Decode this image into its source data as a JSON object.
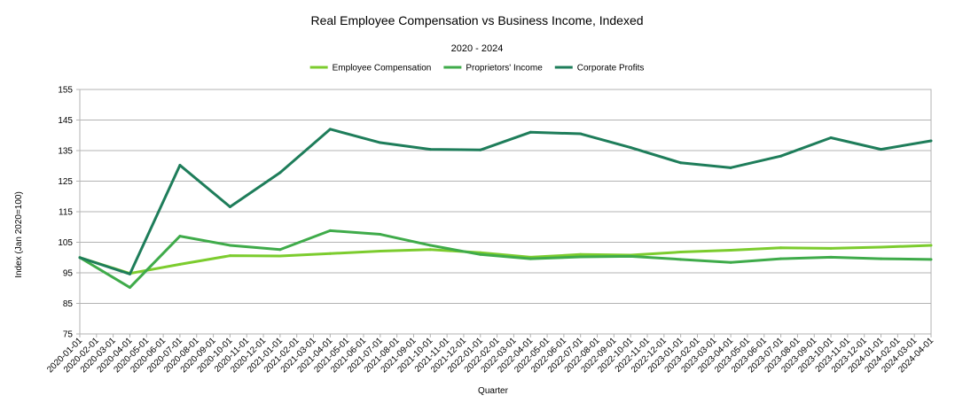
{
  "chart_data": {
    "type": "line",
    "title": "Real Employee Compensation vs Business Income, Indexed",
    "subtitle": "2020 - 2024",
    "xlabel": "Quarter",
    "ylabel": "Index (Jan 2020=100)",
    "ylim": [
      75,
      155
    ],
    "yticks": [
      75,
      85,
      95,
      105,
      115,
      125,
      135,
      145,
      155
    ],
    "grid": true,
    "legend_position": "top-center",
    "categories": [
      "2020-01-01",
      "2020-02-01",
      "2020-03-01",
      "2020-04-01",
      "2020-05-01",
      "2020-06-01",
      "2020-07-01",
      "2020-08-01",
      "2020-09-01",
      "2020-10-01",
      "2020-11-01",
      "2020-12-01",
      "2021-01-01",
      "2021-02-01",
      "2021-03-01",
      "2021-04-01",
      "2021-05-01",
      "2021-06-01",
      "2021-07-01",
      "2021-08-01",
      "2021-09-01",
      "2021-10-01",
      "2021-11-01",
      "2021-12-01",
      "2022-01-01",
      "2022-02-01",
      "2022-03-01",
      "2022-04-01",
      "2022-05-01",
      "2022-06-01",
      "2022-07-01",
      "2022-08-01",
      "2022-09-01",
      "2022-10-01",
      "2022-11-01",
      "2022-12-01",
      "2023-01-01",
      "2023-02-01",
      "2023-03-01",
      "2023-04-01",
      "2023-05-01",
      "2023-06-01",
      "2023-07-01",
      "2023-08-01",
      "2023-09-01",
      "2023-10-01",
      "2023-11-01",
      "2023-12-01",
      "2024-01-01",
      "2024-02-01",
      "2024-03-01",
      "2024-04-01"
    ],
    "series": [
      {
        "name": "Employee Compensation",
        "color": "#7ccc2e",
        "points": [
          {
            "x": "2020-01-01",
            "y": 100
          },
          {
            "x": "2020-04-01",
            "y": 94.8
          },
          {
            "x": "2020-07-01",
            "y": 97.8
          },
          {
            "x": "2020-10-01",
            "y": 100.6
          },
          {
            "x": "2021-01-01",
            "y": 100.5
          },
          {
            "x": "2021-04-01",
            "y": 101.3
          },
          {
            "x": "2021-07-01",
            "y": 102.1
          },
          {
            "x": "2021-10-01",
            "y": 102.6
          },
          {
            "x": "2022-01-01",
            "y": 101.6
          },
          {
            "x": "2022-04-01",
            "y": 100.1
          },
          {
            "x": "2022-07-01",
            "y": 101.0
          },
          {
            "x": "2022-10-01",
            "y": 100.8
          },
          {
            "x": "2023-01-01",
            "y": 101.8
          },
          {
            "x": "2023-04-01",
            "y": 102.4
          },
          {
            "x": "2023-07-01",
            "y": 103.2
          },
          {
            "x": "2023-10-01",
            "y": 103.0
          },
          {
            "x": "2024-01-01",
            "y": 103.4
          },
          {
            "x": "2024-04-01",
            "y": 104.0
          }
        ]
      },
      {
        "name": "Proprietors' Income",
        "color": "#3fab4a",
        "points": [
          {
            "x": "2020-01-01",
            "y": 100
          },
          {
            "x": "2020-04-01",
            "y": 90.2
          },
          {
            "x": "2020-07-01",
            "y": 107.0
          },
          {
            "x": "2020-10-01",
            "y": 104.0
          },
          {
            "x": "2021-01-01",
            "y": 102.6
          },
          {
            "x": "2021-04-01",
            "y": 108.8
          },
          {
            "x": "2021-07-01",
            "y": 107.6
          },
          {
            "x": "2021-10-01",
            "y": 104.0
          },
          {
            "x": "2022-01-01",
            "y": 101.0
          },
          {
            "x": "2022-04-01",
            "y": 99.6
          },
          {
            "x": "2022-07-01",
            "y": 100.2
          },
          {
            "x": "2022-10-01",
            "y": 100.4
          },
          {
            "x": "2023-01-01",
            "y": 99.4
          },
          {
            "x": "2023-04-01",
            "y": 98.4
          },
          {
            "x": "2023-07-01",
            "y": 99.6
          },
          {
            "x": "2023-10-01",
            "y": 100.1
          },
          {
            "x": "2024-01-01",
            "y": 99.6
          },
          {
            "x": "2024-04-01",
            "y": 99.4
          }
        ]
      },
      {
        "name": "Corporate Profits",
        "color": "#1e7d5a",
        "points": [
          {
            "x": "2020-01-01",
            "y": 100
          },
          {
            "x": "2020-04-01",
            "y": 94.6
          },
          {
            "x": "2020-07-01",
            "y": 130.2
          },
          {
            "x": "2020-10-01",
            "y": 116.6
          },
          {
            "x": "2021-01-01",
            "y": 127.8
          },
          {
            "x": "2021-04-01",
            "y": 142.0
          },
          {
            "x": "2021-07-01",
            "y": 137.6
          },
          {
            "x": "2021-10-01",
            "y": 135.4
          },
          {
            "x": "2022-01-01",
            "y": 135.2
          },
          {
            "x": "2022-04-01",
            "y": 141.0
          },
          {
            "x": "2022-07-01",
            "y": 140.5
          },
          {
            "x": "2022-10-01",
            "y": 136.0
          },
          {
            "x": "2023-01-01",
            "y": 131.0
          },
          {
            "x": "2023-04-01",
            "y": 129.4
          },
          {
            "x": "2023-07-01",
            "y": 133.2
          },
          {
            "x": "2023-10-01",
            "y": 139.2
          },
          {
            "x": "2024-01-01",
            "y": 135.4
          },
          {
            "x": "2024-04-01",
            "y": 138.2
          }
        ]
      }
    ]
  }
}
